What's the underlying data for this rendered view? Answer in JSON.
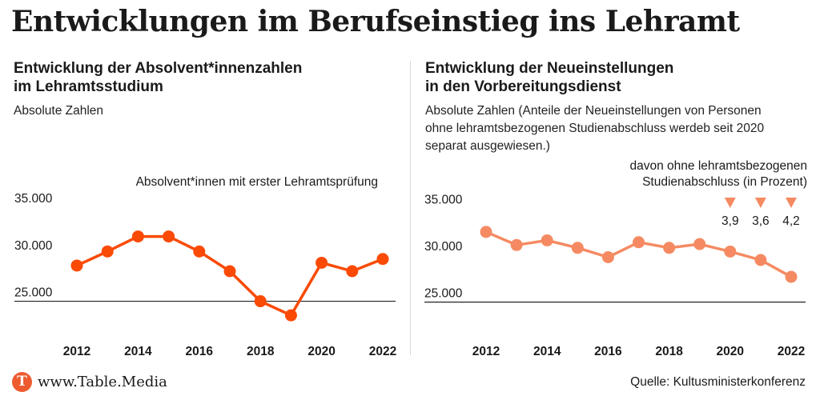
{
  "title": "Entwicklungen im Berufseinstieg ins Lehramt",
  "left": {
    "subtitle_line1": "Entwicklung der Absolvent*innenzahlen",
    "subtitle_line2": "im Lehramtsstudium",
    "note": "Absolute Zahlen"
  },
  "right": {
    "subtitle_line1": "Entwicklung der Neueinstellungen",
    "subtitle_line2": "in den Vorbereitungsdienst",
    "note_line1": "Absolute Zahlen (Anteile der Neueinstellungen von Personen",
    "note_line2": "ohne lehramtsbezogenen Studienabschluss werdeb seit 2020",
    "note_line3": "separat ausgewiesen.)"
  },
  "footer": {
    "logo_letter": "T",
    "site": "www.Table.Media",
    "source": "Quelle: Kultusministerkonferenz"
  },
  "colors": {
    "left_series": "#fa4a06",
    "right_series": "#f58a62",
    "logo": "#ee5b2f"
  },
  "chart_data": [
    {
      "type": "line",
      "title": "Entwicklung der Absolvent*innenzahlen im Lehramtsstudium",
      "series": [
        {
          "name": "Absolvent*innen mit erster Lehramtsprüfung",
          "x": [
            2012,
            2013,
            2014,
            2015,
            2016,
            2017,
            2018,
            2019,
            2020,
            2021,
            2022
          ],
          "values": [
            28800,
            30300,
            31900,
            31900,
            30300,
            28200,
            25000,
            23500,
            29100,
            28200,
            29500
          ]
        }
      ],
      "ylim": [
        23000,
        36000
      ],
      "yticks": [
        25000,
        30000,
        35000
      ],
      "ytick_labels": [
        "25.000",
        "30.000",
        "35.000"
      ],
      "xticks": [
        2012,
        2014,
        2016,
        2018,
        2020,
        2022
      ],
      "grid": false
    },
    {
      "type": "line",
      "title": "Entwicklung der Neueinstellungen in den Vorbereitungsdienst",
      "series": [
        {
          "x": [
            2012,
            2013,
            2014,
            2015,
            2016,
            2017,
            2018,
            2019,
            2020,
            2021,
            2022
          ],
          "values": [
            32500,
            31100,
            31600,
            30800,
            29800,
            31400,
            30800,
            31200,
            30400,
            29500,
            27700
          ]
        }
      ],
      "annotation_title_line1": "davon ohne lehramtsbezogenen",
      "annotation_title_line2": "Studienabschluss (in Prozent)",
      "annotations": [
        {
          "x": 2020,
          "label": "3,9"
        },
        {
          "x": 2021,
          "label": "3,6"
        },
        {
          "x": 2022,
          "label": "4,2"
        }
      ],
      "ylim": [
        23000,
        36000
      ],
      "yticks": [
        25000,
        30000,
        35000
      ],
      "ytick_labels": [
        "25.000",
        "30.000",
        "35.000"
      ],
      "xticks": [
        2012,
        2014,
        2016,
        2018,
        2020,
        2022
      ],
      "grid": false
    }
  ]
}
